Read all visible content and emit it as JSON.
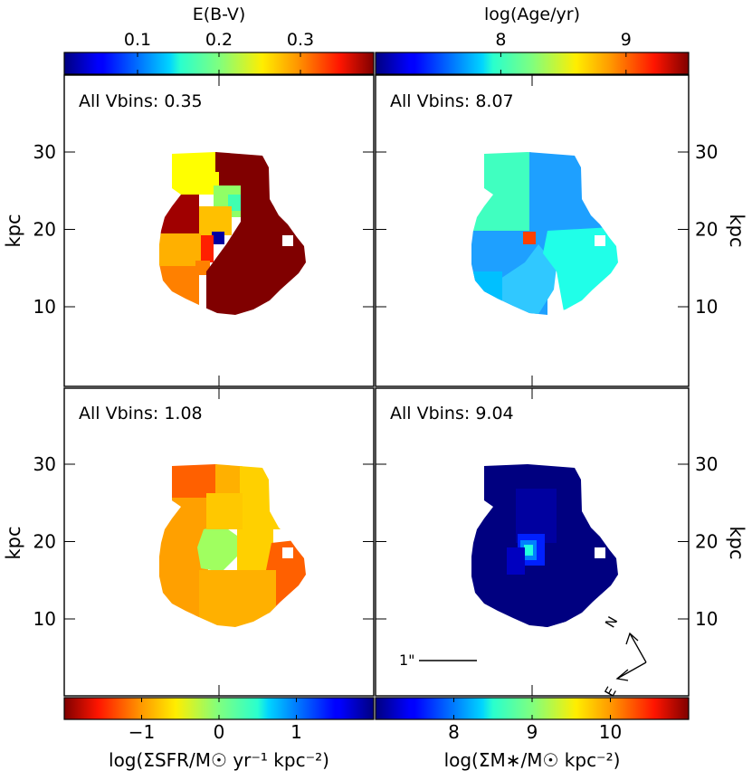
{
  "colorbars": {
    "top_left": {
      "label": "E(B-V)",
      "ticks": [
        "0.1",
        "0.2",
        "0.3"
      ],
      "values": [
        0.1,
        0.2,
        0.3
      ],
      "range": [
        0.01,
        0.39
      ],
      "colormap": "jet"
    },
    "top_right": {
      "label": "log(Age/yr)",
      "ticks": [
        "8",
        "9"
      ],
      "values": [
        8,
        9
      ],
      "range": [
        7.0,
        9.5
      ],
      "colormap": "jet"
    },
    "bottom_left": {
      "label": "log(ΣSFR/M☉ yr⁻¹ kpc⁻²)",
      "ticks": [
        "−1",
        "0",
        "1"
      ],
      "values": [
        -1,
        0,
        1
      ],
      "range": [
        -2.0,
        2.0
      ],
      "colormap": "jet_reversed"
    },
    "bottom_right": {
      "label": "log(ΣM∗/M☉ kpc⁻²)",
      "ticks": [
        "8",
        "9",
        "10"
      ],
      "values": [
        8,
        9,
        10
      ],
      "range": [
        7.0,
        11.0
      ],
      "colormap": "jet"
    }
  },
  "panels": {
    "ebv": {
      "annotation": "All Vbins: 0.35"
    },
    "age": {
      "annotation": "All Vbins: 8.07"
    },
    "sfr": {
      "annotation": "All Vbins: 1.08"
    },
    "mass": {
      "annotation": "All Vbins: 9.04"
    }
  },
  "axes": {
    "y_label": "kpc",
    "y_ticks": [
      "10",
      "20",
      "30"
    ],
    "y_values": [
      10,
      20,
      30
    ],
    "x_values": [
      0
    ]
  },
  "scale_bar": {
    "label": "1\""
  },
  "compass": {
    "north": "N",
    "east": "E"
  },
  "colors": {
    "ebv": [
      "#ffff00",
      "#800000",
      "#ffff00",
      "#90ff66",
      "#40ffb0",
      "#ffc000",
      "#ff8000",
      "#a00000",
      "#0000a0",
      "#ff2000",
      "#ffb000",
      "#ff8000",
      "#800000"
    ],
    "age": [
      "#40ffc0",
      "#1ea0ff",
      "#1ea0ff",
      "#ff4000",
      "#30c8ff",
      "#20ffe8",
      "#00c0ff"
    ],
    "sfr": [
      "#ff6000",
      "#ffb000",
      "#ffd000",
      "#ffa000",
      "#a0ff60",
      "#ffc800",
      "#ffd000",
      "#ff6000",
      "#ffb000",
      "#ffa000"
    ],
    "mass": [
      "#000080",
      "#0000a0",
      "#0020ff",
      "#0080ff",
      "#20ffe0",
      "#0000c0",
      "#000080"
    ]
  }
}
